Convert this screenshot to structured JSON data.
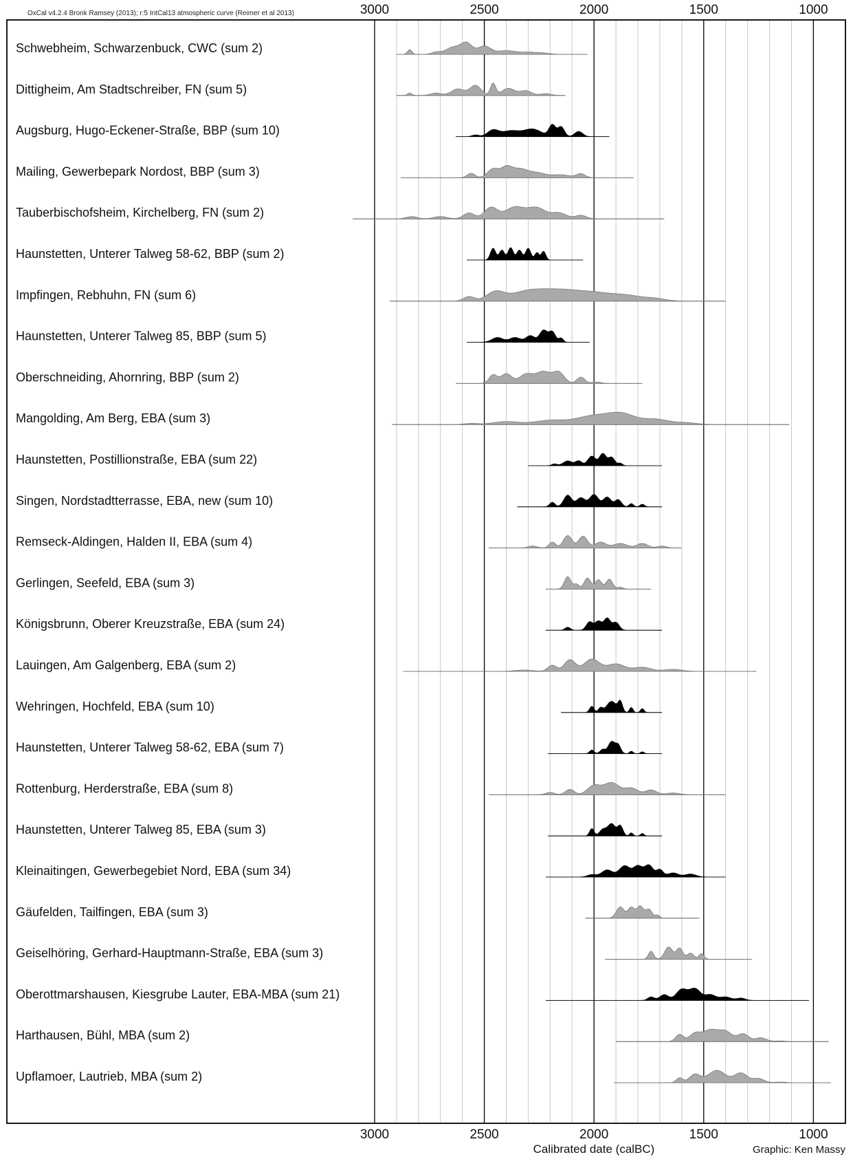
{
  "header": {
    "software_note": "OxCal v4.2.4 Bronk Ramsey (2013); r:5 IntCal13 atmospheric curve (Reimer et al 2013)"
  },
  "footer": {
    "credit": "Graphic: Ken Massy"
  },
  "colors": {
    "gray_fill": "#a9a9a9",
    "gray_stroke": "#777777",
    "black_fill": "#000000",
    "range_line": "#6f6f6f",
    "major_grid": "#000000",
    "minor_grid": "#c8c8c8"
  },
  "chart_data": {
    "type": "area",
    "title": "",
    "xlabel": "Calibrated date (calBC)",
    "ylabel": "",
    "x_axis": {
      "reversed": true,
      "xlim": [
        3000,
        930
      ],
      "major_ticks": [
        3000,
        2500,
        2000,
        1500,
        1000
      ],
      "major_tick_labels": [
        "3000",
        "2500",
        "2000",
        "1500",
        "1000"
      ],
      "minor_step": 100,
      "axis_position": [
        "top",
        "bottom"
      ]
    },
    "grid": true,
    "series": [
      {
        "name": "Schwebheim, Schwarzenbuck, CWC (sum 2)",
        "color": "gray",
        "range": [
          2900,
          2030
        ],
        "peaks": [
          [
            2840,
            0.45,
            10
          ],
          [
            2720,
            0.2,
            20
          ],
          [
            2640,
            0.7,
            35
          ],
          [
            2580,
            1.0,
            25
          ],
          [
            2500,
            0.8,
            30
          ],
          [
            2400,
            0.35,
            40
          ],
          [
            2300,
            0.2,
            40
          ],
          [
            2230,
            0.1,
            30
          ]
        ]
      },
      {
        "name": "Dittigheim, Am Stadtschreiber, FN (sum 5)",
        "color": "gray",
        "range": [
          2900,
          2130
        ],
        "peaks": [
          [
            2840,
            0.2,
            10
          ],
          [
            2720,
            0.2,
            25
          ],
          [
            2620,
            0.55,
            30
          ],
          [
            2540,
            0.85,
            25
          ],
          [
            2460,
            1.0,
            12
          ],
          [
            2390,
            0.6,
            30
          ],
          [
            2310,
            0.4,
            25
          ],
          [
            2220,
            0.15,
            25
          ]
        ]
      },
      {
        "name": "Augsburg, Hugo-Eckener-Straße, BBP (sum 10)",
        "color": "black",
        "range": [
          2630,
          1930
        ],
        "peaks": [
          [
            2540,
            0.15,
            15
          ],
          [
            2460,
            0.55,
            25
          ],
          [
            2380,
            0.5,
            40
          ],
          [
            2280,
            0.65,
            40
          ],
          [
            2190,
            1.0,
            15
          ],
          [
            2150,
            0.85,
            15
          ],
          [
            2070,
            0.45,
            18
          ]
        ]
      },
      {
        "name": "Mailing, Gewerbepark Nordost, BBP (sum 3)",
        "color": "gray",
        "range": [
          2880,
          1820
        ],
        "peaks": [
          [
            2560,
            0.45,
            18
          ],
          [
            2460,
            0.9,
            25
          ],
          [
            2400,
            1.0,
            25
          ],
          [
            2340,
            0.85,
            35
          ],
          [
            2260,
            0.5,
            40
          ],
          [
            2150,
            0.3,
            40
          ],
          [
            2060,
            0.4,
            20
          ]
        ]
      },
      {
        "name": "Tauberbischofsheim, Kirchelberg, FN (sum 2)",
        "color": "gray",
        "range": [
          3100,
          1680
        ],
        "peaks": [
          [
            2830,
            0.2,
            25
          ],
          [
            2700,
            0.2,
            30
          ],
          [
            2570,
            0.5,
            25
          ],
          [
            2470,
            0.95,
            30
          ],
          [
            2360,
            1.0,
            45
          ],
          [
            2260,
            0.9,
            40
          ],
          [
            2160,
            0.5,
            35
          ],
          [
            2060,
            0.3,
            25
          ]
        ]
      },
      {
        "name": "Haunstetten, Unterer Talweg 58-62, BBP (sum 2)",
        "color": "black",
        "range": [
          2580,
          2050
        ],
        "peaks": [
          [
            2460,
            0.95,
            12
          ],
          [
            2420,
            0.8,
            12
          ],
          [
            2380,
            1.0,
            12
          ],
          [
            2340,
            0.8,
            12
          ],
          [
            2300,
            0.95,
            12
          ],
          [
            2260,
            0.6,
            10
          ],
          [
            2230,
            0.7,
            10
          ]
        ]
      },
      {
        "name": "Impfingen, Rebhuhn, FN (sum 6)",
        "color": "gray",
        "range": [
          2930,
          1400
        ],
        "peaks": [
          [
            2570,
            0.4,
            25
          ],
          [
            2450,
            0.75,
            40
          ],
          [
            2300,
            0.85,
            80
          ],
          [
            2150,
            0.8,
            80
          ],
          [
            2000,
            0.65,
            80
          ],
          [
            1850,
            0.45,
            70
          ],
          [
            1720,
            0.2,
            50
          ]
        ]
      },
      {
        "name": "Haunstetten, Unterer Talweg 85, BBP (sum 5)",
        "color": "black",
        "range": [
          2580,
          2020
        ],
        "peaks": [
          [
            2440,
            0.4,
            25
          ],
          [
            2360,
            0.4,
            25
          ],
          [
            2290,
            0.55,
            20
          ],
          [
            2230,
            1.0,
            18
          ],
          [
            2190,
            0.85,
            15
          ],
          [
            2150,
            0.35,
            10
          ]
        ]
      },
      {
        "name": "Oberschneiding, Ahornring, BBP (sum 2)",
        "color": "gray",
        "range": [
          2630,
          1780
        ],
        "peaks": [
          [
            2460,
            0.6,
            18
          ],
          [
            2400,
            0.7,
            25
          ],
          [
            2310,
            0.65,
            30
          ],
          [
            2230,
            0.85,
            35
          ],
          [
            2160,
            0.75,
            25
          ],
          [
            2060,
            0.45,
            18
          ],
          [
            1990,
            0.1,
            20
          ]
        ]
      },
      {
        "name": "Mangolding, Am Berg, EBA (sum 3)",
        "color": "gray",
        "range": [
          2920,
          1110
        ],
        "peaks": [
          [
            2560,
            0.1,
            30
          ],
          [
            2400,
            0.25,
            60
          ],
          [
            2200,
            0.35,
            70
          ],
          [
            2000,
            0.75,
            80
          ],
          [
            1870,
            0.8,
            60
          ],
          [
            1720,
            0.45,
            60
          ],
          [
            1580,
            0.15,
            50
          ]
        ]
      },
      {
        "name": "Haunstetten, Postillionstraße, EBA (sum 22)",
        "color": "black",
        "range": [
          2300,
          1690
        ],
        "peaks": [
          [
            2180,
            0.15,
            12
          ],
          [
            2120,
            0.4,
            20
          ],
          [
            2070,
            0.4,
            15
          ],
          [
            2010,
            0.8,
            18
          ],
          [
            1960,
            1.0,
            15
          ],
          [
            1920,
            0.7,
            15
          ],
          [
            1880,
            0.2,
            10
          ]
        ]
      },
      {
        "name": "Singen, Nordstadtterrasse, EBA, new (sum 10)",
        "color": "black",
        "range": [
          2350,
          1690
        ],
        "peaks": [
          [
            2190,
            0.35,
            12
          ],
          [
            2120,
            0.9,
            18
          ],
          [
            2060,
            0.7,
            20
          ],
          [
            2000,
            0.95,
            20
          ],
          [
            1940,
            0.75,
            18
          ],
          [
            1890,
            0.55,
            15
          ],
          [
            1830,
            0.25,
            10
          ],
          [
            1780,
            0.2,
            10
          ]
        ]
      },
      {
        "name": "Remseck-Aldingen, Halden II, EBA (sum 4)",
        "color": "gray",
        "range": [
          2480,
          1600
        ],
        "peaks": [
          [
            2280,
            0.15,
            20
          ],
          [
            2190,
            0.45,
            15
          ],
          [
            2120,
            0.95,
            20
          ],
          [
            2050,
            0.9,
            20
          ],
          [
            1970,
            0.45,
            25
          ],
          [
            1880,
            0.35,
            30
          ],
          [
            1780,
            0.35,
            25
          ],
          [
            1690,
            0.15,
            20
          ]
        ]
      },
      {
        "name": "Gerlingen, Seefeld, EBA (sum 3)",
        "color": "gray",
        "range": [
          2220,
          1740
        ],
        "peaks": [
          [
            2120,
            1.0,
            15
          ],
          [
            2080,
            0.4,
            12
          ],
          [
            2030,
            0.9,
            15
          ],
          [
            1980,
            0.75,
            15
          ],
          [
            1930,
            0.8,
            15
          ],
          [
            1880,
            0.15,
            12
          ]
        ]
      },
      {
        "name": "Königsbrunn, Oberer Kreuzstraße, EBA (sum 24)",
        "color": "black",
        "range": [
          2220,
          1690
        ],
        "peaks": [
          [
            2120,
            0.25,
            12
          ],
          [
            2020,
            0.7,
            15
          ],
          [
            1980,
            0.75,
            15
          ],
          [
            1940,
            1.0,
            15
          ],
          [
            1900,
            0.65,
            15
          ]
        ]
      },
      {
        "name": "Lauingen, Am Galgenberg, EBA (sum 2)",
        "color": "gray",
        "range": [
          2870,
          1260
        ],
        "peaks": [
          [
            2320,
            0.1,
            40
          ],
          [
            2190,
            0.45,
            20
          ],
          [
            2110,
            0.85,
            25
          ],
          [
            2010,
            0.9,
            35
          ],
          [
            1900,
            0.55,
            40
          ],
          [
            1780,
            0.3,
            40
          ],
          [
            1640,
            0.15,
            40
          ]
        ]
      },
      {
        "name": "Wehringen, Hochfeld, EBA (sum 10)",
        "color": "black",
        "range": [
          2150,
          1690
        ],
        "peaks": [
          [
            2010,
            0.55,
            10
          ],
          [
            1970,
            0.4,
            10
          ],
          [
            1920,
            1.0,
            22
          ],
          [
            1880,
            0.9,
            10
          ],
          [
            1830,
            0.45,
            8
          ],
          [
            1780,
            0.35,
            8
          ]
        ]
      },
      {
        "name": "Haunstetten, Unterer Talweg 58-62, EBA (sum 7)",
        "color": "black",
        "range": [
          2210,
          1690
        ],
        "peaks": [
          [
            2010,
            0.3,
            10
          ],
          [
            1960,
            0.35,
            12
          ],
          [
            1920,
            1.0,
            15
          ],
          [
            1890,
            0.7,
            12
          ],
          [
            1830,
            0.2,
            8
          ],
          [
            1780,
            0.15,
            8
          ]
        ]
      },
      {
        "name": "Rottenburg, Herderstraße, EBA (sum 8)",
        "color": "gray",
        "range": [
          2480,
          1400
        ],
        "peaks": [
          [
            2200,
            0.2,
            20
          ],
          [
            2110,
            0.45,
            20
          ],
          [
            2000,
            0.75,
            30
          ],
          [
            1920,
            1.0,
            35
          ],
          [
            1830,
            0.55,
            30
          ],
          [
            1740,
            0.4,
            25
          ],
          [
            1640,
            0.15,
            30
          ]
        ]
      },
      {
        "name": "Haunstetten, Unterer Talweg 85, EBA (sum 3)",
        "color": "black",
        "range": [
          2210,
          1690
        ],
        "peaks": [
          [
            2010,
            0.6,
            10
          ],
          [
            1960,
            0.5,
            15
          ],
          [
            1920,
            1.0,
            18
          ],
          [
            1880,
            0.8,
            12
          ],
          [
            1830,
            0.25,
            8
          ],
          [
            1780,
            0.2,
            8
          ]
        ]
      },
      {
        "name": "Kleinaitingen, Gewerbegebiet Nord, EBA (sum 34)",
        "color": "black",
        "range": [
          2220,
          1400
        ],
        "peaks": [
          [
            2010,
            0.2,
            20
          ],
          [
            1940,
            0.6,
            25
          ],
          [
            1860,
            0.95,
            25
          ],
          [
            1800,
            0.9,
            20
          ],
          [
            1750,
            1.0,
            20
          ],
          [
            1700,
            0.6,
            15
          ],
          [
            1640,
            0.35,
            25
          ],
          [
            1560,
            0.25,
            25
          ]
        ]
      },
      {
        "name": "Gäufelden, Tailfingen, EBA (sum 3)",
        "color": "gray",
        "range": [
          2040,
          1520
        ],
        "peaks": [
          [
            1880,
            0.95,
            18
          ],
          [
            1830,
            0.9,
            15
          ],
          [
            1790,
            1.0,
            15
          ],
          [
            1750,
            0.75,
            15
          ],
          [
            1710,
            0.25,
            10
          ]
        ]
      },
      {
        "name": "Geiselhöring, Gerhard-Hauptmann-Straße, EBA (sum 3)",
        "color": "gray",
        "range": [
          1950,
          1280
        ],
        "peaks": [
          [
            1740,
            0.65,
            12
          ],
          [
            1660,
            1.0,
            18
          ],
          [
            1610,
            0.9,
            15
          ],
          [
            1560,
            0.5,
            15
          ],
          [
            1510,
            0.45,
            12
          ]
        ]
      },
      {
        "name": "Oberottmarshausen, Kiesgrube Lauter, EBA-MBA (sum 21)",
        "color": "black",
        "range": [
          2220,
          1020
        ],
        "peaks": [
          [
            1740,
            0.3,
            15
          ],
          [
            1680,
            0.5,
            20
          ],
          [
            1600,
            0.95,
            25
          ],
          [
            1540,
            1.0,
            25
          ],
          [
            1470,
            0.5,
            25
          ],
          [
            1400,
            0.3,
            25
          ],
          [
            1330,
            0.2,
            20
          ]
        ]
      },
      {
        "name": "Harthausen, Bühl, MBA (sum 2)",
        "color": "gray",
        "range": [
          1900,
          930
        ],
        "peaks": [
          [
            1610,
            0.55,
            18
          ],
          [
            1540,
            0.6,
            25
          ],
          [
            1470,
            0.9,
            35
          ],
          [
            1400,
            0.75,
            30
          ],
          [
            1320,
            0.6,
            25
          ],
          [
            1240,
            0.3,
            25
          ],
          [
            1150,
            0.05,
            25
          ]
        ]
      },
      {
        "name": "Upflamoer, Lautrieb, MBA (sum 2)",
        "color": "gray",
        "range": [
          1910,
          920
        ],
        "peaks": [
          [
            1610,
            0.35,
            15
          ],
          [
            1540,
            0.6,
            25
          ],
          [
            1440,
            0.9,
            40
          ],
          [
            1330,
            0.7,
            30
          ],
          [
            1250,
            0.3,
            25
          ],
          [
            1150,
            0.05,
            25
          ]
        ]
      }
    ]
  }
}
